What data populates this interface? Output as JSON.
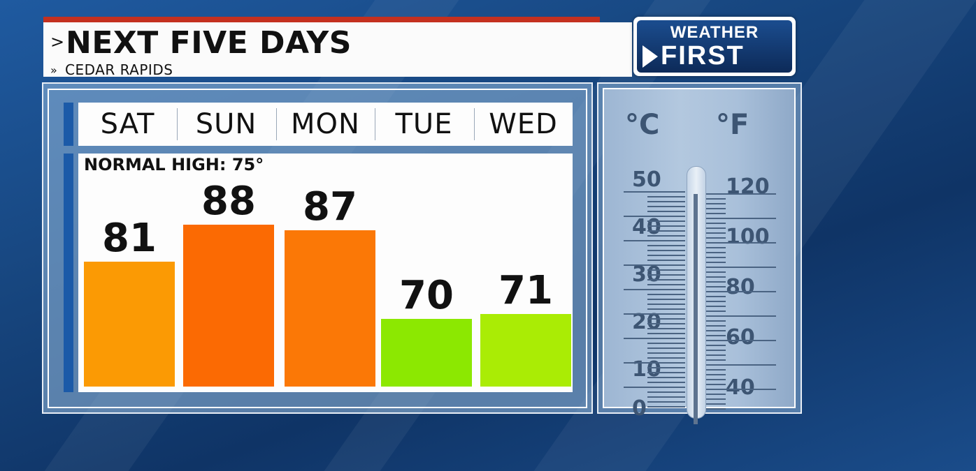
{
  "header": {
    "title_chevron": ">",
    "title": "NEXT FIVE DAYS",
    "subtitle_chevron": "»",
    "subtitle": "CEDAR RAPIDS"
  },
  "logo": {
    "line1": "WEATHER",
    "line2": "FIRST"
  },
  "chart_data": {
    "type": "bar",
    "categories": [
      "SAT",
      "SUN",
      "MON",
      "TUE",
      "WED"
    ],
    "values": [
      81,
      88,
      87,
      70,
      71
    ],
    "value_labels": [
      "81",
      "88",
      "87",
      "70",
      "71"
    ],
    "bar_colors": [
      "#fb9a04",
      "#fb6a03",
      "#fb7806",
      "#8ce801",
      "#aaec05"
    ],
    "annotation": "NORMAL HIGH: 75°",
    "title": "NEXT FIVE DAYS",
    "subtitle": "CEDAR RAPIDS"
  },
  "thermometer": {
    "celsius_unit": "°C",
    "fahrenheit_unit": "°F",
    "celsius_labels": [
      "50",
      "40",
      "30",
      "20",
      "10",
      "0"
    ],
    "fahrenheit_labels": [
      "120",
      "100",
      "80",
      "60",
      "40"
    ]
  },
  "colors": {
    "header_accent": "#c4301f",
    "background": "#17467f",
    "day_tab": "#1b5aa8"
  }
}
